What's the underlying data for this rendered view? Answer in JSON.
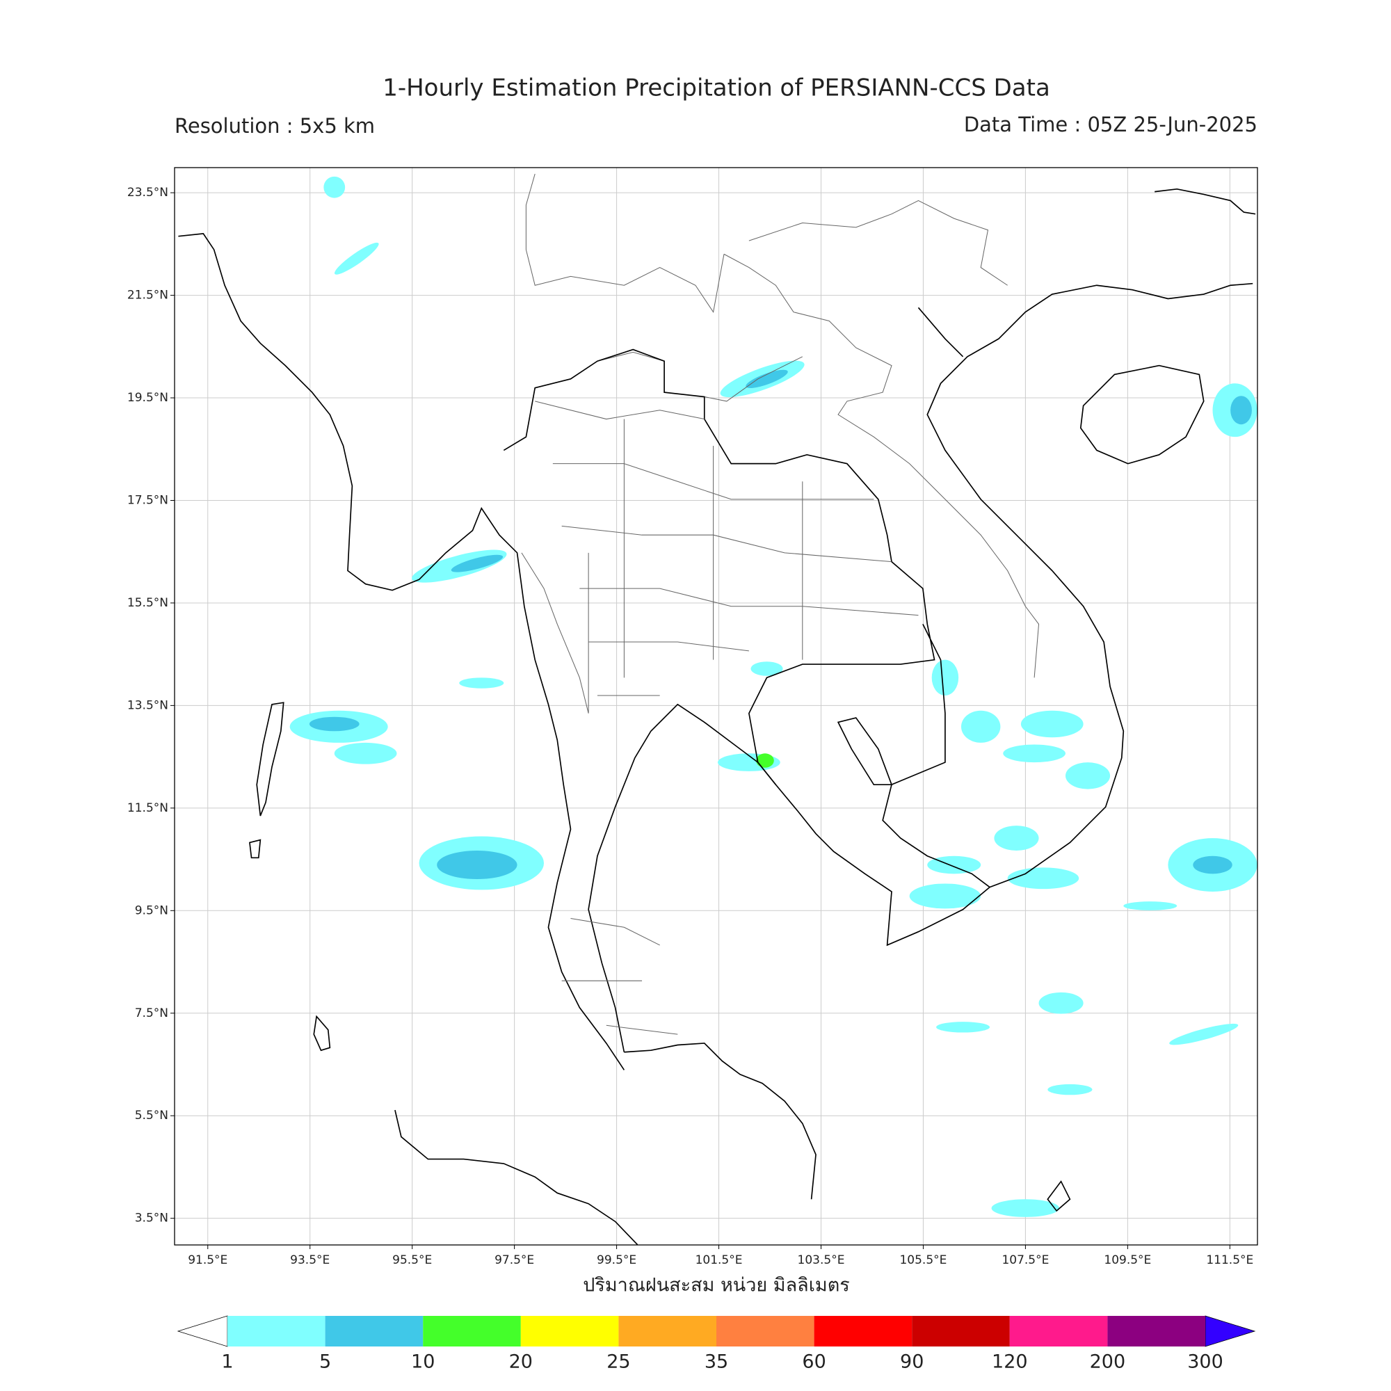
{
  "chart_data": {
    "type": "map",
    "title": "1-Hourly Estimation Precipitation of PERSIANN-CCS Data",
    "subtitle_left": "Resolution : 5x5 km",
    "subtitle_right": "Data Time : 05Z 25-Jun-2025",
    "xlabel": "ปริมาณฝนสะสม หน่วย มิลลิเมตร",
    "xlim": [
      90.85,
      112.04
    ],
    "ylim": [
      2.98,
      23.99
    ],
    "grid": true,
    "xticks": [
      {
        "value": 91.5,
        "label": "91.5°E"
      },
      {
        "value": 93.5,
        "label": "93.5°E"
      },
      {
        "value": 95.5,
        "label": "95.5°E"
      },
      {
        "value": 97.5,
        "label": "97.5°E"
      },
      {
        "value": 99.5,
        "label": "99.5°E"
      },
      {
        "value": 101.5,
        "label": "101.5°E"
      },
      {
        "value": 103.5,
        "label": "103.5°E"
      },
      {
        "value": 105.5,
        "label": "105.5°E"
      },
      {
        "value": 107.5,
        "label": "107.5°E"
      },
      {
        "value": 109.5,
        "label": "109.5°E"
      },
      {
        "value": 111.5,
        "label": "111.5°E"
      }
    ],
    "yticks": [
      {
        "value": 3.5,
        "label": "3.5°N"
      },
      {
        "value": 5.5,
        "label": "5.5°N"
      },
      {
        "value": 7.5,
        "label": "7.5°N"
      },
      {
        "value": 9.5,
        "label": "9.5°N"
      },
      {
        "value": 11.5,
        "label": "11.5°N"
      },
      {
        "value": 13.5,
        "label": "13.5°N"
      },
      {
        "value": 15.5,
        "label": "15.5°N"
      },
      {
        "value": 17.5,
        "label": "17.5°N"
      },
      {
        "value": 19.5,
        "label": "19.5°N"
      },
      {
        "value": 21.5,
        "label": "21.5°N"
      },
      {
        "value": 23.5,
        "label": "23.5°N"
      }
    ],
    "colorbar": {
      "levels": [
        1,
        5,
        10,
        20,
        25,
        35,
        60,
        90,
        120,
        200,
        300
      ],
      "colors": [
        "#80ffff",
        "#40c8e8",
        "#44ff2a",
        "#ffff00",
        "#ffaa22",
        "#ff8040",
        "#ff0000",
        "#cc0000",
        "#ff1a8c",
        "#8c0080"
      ],
      "under_color": "#ffffff",
      "over_color": "#3300ff"
    }
  }
}
